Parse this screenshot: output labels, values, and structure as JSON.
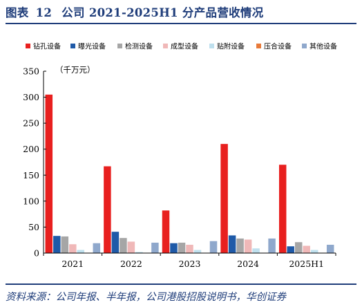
{
  "figure": {
    "label": "图表",
    "number": "12",
    "title": "公司 2021-2025H1 分产品营收情况",
    "source": "资料来源：公司年报、半年报，公司港股招股说明书，华创证券"
  },
  "chart_data": {
    "type": "bar",
    "unit_label": "（千万元）",
    "categories": [
      "2021",
      "2022",
      "2023",
      "2024",
      "2025H1"
    ],
    "ylim": [
      0,
      350
    ],
    "yticks": [
      0,
      50,
      100,
      150,
      200,
      250,
      300,
      350
    ],
    "grid": false,
    "legend_position": "top",
    "series": [
      {
        "name": "钻孔设备",
        "color": "#e8201f",
        "values": [
          305,
          167,
          82,
          210,
          170
        ]
      },
      {
        "name": "曝光设备",
        "color": "#1f5aa8",
        "values": [
          33,
          41,
          19,
          34,
          13
        ]
      },
      {
        "name": "检测设备",
        "color": "#a6a6a6",
        "values": [
          32,
          29,
          20,
          28,
          21
        ]
      },
      {
        "name": "成型设备",
        "color": "#f0b8b8",
        "values": [
          17,
          22,
          16,
          26,
          14
        ]
      },
      {
        "name": "贴附设备",
        "color": "#bfe0ee",
        "values": [
          6,
          2,
          6,
          9,
          6
        ]
      },
      {
        "name": "压合设备",
        "color": "#e87a3a",
        "values": [
          0,
          0,
          0,
          0,
          0
        ]
      },
      {
        "name": "其他设备",
        "color": "#8fa8cc",
        "values": [
          19,
          20,
          23,
          28,
          16
        ]
      }
    ]
  }
}
